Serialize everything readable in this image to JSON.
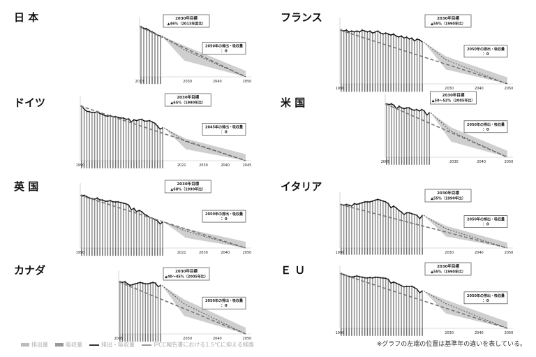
{
  "note": "※グラフの左端の位置は基準年の違いを表している。",
  "legend": {
    "emissions": "排出量",
    "removals": "吸収量",
    "net": "排出・吸収量",
    "ipcc": "IPCC報告書における1.5℃に抑える経路"
  },
  "colors": {
    "bar": "#8c8c8c",
    "band": "#cfcfcf",
    "net": "#111111",
    "ipcc": "#777777"
  },
  "chart_data": [
    {
      "type": "bar",
      "country": "日 本",
      "base_year": 2013,
      "axis_labels": [
        "2013",
        "2030",
        "2040",
        "2050"
      ],
      "box1_title": "2030年目標",
      "box1_text": "▲46%（2013年度比）",
      "box2_title": "2050年の排出・吸収量",
      "box2_text": "：0",
      "net": [
        14.1,
        13.6,
        13.5,
        13.0,
        12.6,
        12.2,
        11.7,
        11.5
      ],
      "target_2030": 7.6,
      "final": 0,
      "ipcc_path": [
        14.1,
        0
      ]
    },
    {
      "type": "bar",
      "country": "フランス",
      "base_year": 1990,
      "axis_labels": [
        "1990",
        "2030",
        "2040",
        "2050"
      ],
      "box1_title": "2030年目標",
      "box1_text": "▲55%（1990年比）",
      "box2_title": "2050年の排出・吸収量",
      "box2_text": "：0",
      "net": [
        5.4,
        5.3,
        5.4,
        5.2,
        5.3,
        5.2,
        5.3,
        5.2,
        5.4,
        5.3,
        5.2,
        5.3,
        5.1,
        5.2,
        5.3,
        5.1,
        5.0,
        5.1,
        5.0,
        4.9,
        5.0,
        4.8,
        4.7,
        4.8,
        4.6,
        4.7,
        4.5,
        4.6,
        4.3,
        4.5,
        4.4,
        4.2
      ],
      "target_2030": 2.4,
      "final": 0,
      "ipcc_path": [
        5.4,
        0
      ]
    },
    {
      "type": "bar",
      "country": "ドイツ",
      "base_year": 1990,
      "axis_labels": [
        "1990",
        "2021",
        "2030",
        "2040",
        "2045"
      ],
      "box1_title": "2030年目標",
      "box1_text": "▲65%（1990年比）",
      "box2_title": "2045年の排出・吸収量",
      "box2_text": "：0",
      "net": [
        12.3,
        11.6,
        11.1,
        11.0,
        10.8,
        10.8,
        11.0,
        10.6,
        10.4,
        10.1,
        10.0,
        10.1,
        9.9,
        9.9,
        9.7,
        9.6,
        9.6,
        9.3,
        9.4,
        8.7,
        9.2,
        9.0,
        9.2,
        9.3,
        8.9,
        8.9,
        9.0,
        8.7,
        8.4,
        7.8,
        7.1,
        7.4
      ],
      "target_2030": 4.3,
      "final": 0,
      "ipcc_path": [
        12.3,
        0
      ]
    },
    {
      "type": "bar",
      "country": "米 国",
      "base_year": 2005,
      "axis_labels": [
        "2005",
        "2030",
        "2040",
        "2050"
      ],
      "box1_title": "2030年目標",
      "box1_text": "▲50～52%（2005年比）",
      "box2_title": "2050年の排出・吸収量",
      "box2_text": "：0",
      "net": [
        6.6,
        6.5,
        6.6,
        6.4,
        6.0,
        6.3,
        6.1,
        6.0,
        6.1,
        6.1,
        5.9,
        5.8,
        5.9,
        5.7,
        5.9,
        5.7,
        5.2,
        5.5
      ],
      "target_2030": 3.2,
      "final": 0,
      "ipcc_path": [
        6.6,
        0
      ]
    },
    {
      "type": "bar",
      "country": "英 国",
      "base_year": 1990,
      "axis_labels": [
        "1990",
        "2021",
        "2030",
        "2040",
        "2050"
      ],
      "box1_title": "2030年目標",
      "box1_text": "▲68%（1990年比）",
      "box2_title": "2050年の排出・吸収量",
      "box2_text": "：0",
      "net": [
        8.1,
        8.1,
        7.9,
        7.7,
        7.6,
        7.5,
        7.7,
        7.4,
        7.4,
        7.2,
        7.2,
        7.3,
        7.1,
        7.1,
        7.1,
        7.0,
        6.9,
        6.8,
        6.6,
        5.9,
        6.1,
        5.6,
        5.8,
        5.6,
        5.2,
        5.0,
        4.7,
        4.6,
        4.4,
        4.2,
        3.7,
        4.0
      ],
      "target_2030": 2.6,
      "final": 0,
      "ipcc_path": [
        8.1,
        0
      ]
    },
    {
      "type": "bar",
      "country": "イタリア",
      "base_year": 1990,
      "axis_labels": [
        "1990",
        "2030",
        "2040",
        "2050"
      ],
      "box1_title": "2030年目標",
      "box1_text": "▲55%（1990年比）",
      "box2_title": "2050年の排出・吸収量",
      "box2_text": "：0",
      "net": [
        5.2,
        5.1,
        5.2,
        5.1,
        5.0,
        5.3,
        5.2,
        5.3,
        5.4,
        5.5,
        5.5,
        5.5,
        5.6,
        5.7,
        5.8,
        5.7,
        5.6,
        5.5,
        5.3,
        4.8,
        5.0,
        4.8,
        4.5,
        4.3,
        4.0,
        4.2,
        4.2,
        4.1,
        4.0,
        3.9,
        3.5,
        3.9
      ],
      "target_2030": 2.3,
      "final": 0,
      "ipcc_path": [
        5.2,
        0
      ]
    },
    {
      "type": "bar",
      "country": "カナダ",
      "base_year": 2005,
      "axis_labels": [
        "2005",
        "2030",
        "2040",
        "2050"
      ],
      "box1_title": "2030年目標",
      "box1_text": "▲40～45%（2005年比）",
      "box2_title": "2050年の排出・吸収量",
      "box2_text": "：0",
      "net": [
        7.3,
        7.2,
        7.3,
        7.0,
        6.8,
        6.9,
        7.0,
        7.1,
        7.2,
        7.1,
        7.0,
        7.0,
        7.1,
        7.2,
        7.1,
        6.6,
        6.8
      ],
      "target_2030": 4.2,
      "final": 0,
      "ipcc_path": [
        7.3,
        0
      ]
    },
    {
      "type": "bar",
      "country": "Ｅ Ｕ",
      "base_year": 1990,
      "axis_labels": [
        "1990",
        "2030",
        "2040",
        "2050"
      ],
      "box1_title": "2030年目標",
      "box1_text": "▲55%（1990年比）",
      "box2_title": "2050年の排出・吸収量",
      "box2_text": "：0",
      "net": [
        48.4,
        47.5,
        46.6,
        45.8,
        45.4,
        45.7,
        46.3,
        45.6,
        45.2,
        44.6,
        44.5,
        44.9,
        44.5,
        45.1,
        45.0,
        44.6,
        44.5,
        44.2,
        43.3,
        39.9,
        40.9,
        39.9,
        38.9,
        37.7,
        36.6,
        37.1,
        36.9,
        37.2,
        36.0,
        34.5,
        31.5,
        33.1
      ],
      "target_2030": 21.8,
      "final": 0,
      "ipcc_path": [
        48.4,
        0
      ]
    }
  ]
}
